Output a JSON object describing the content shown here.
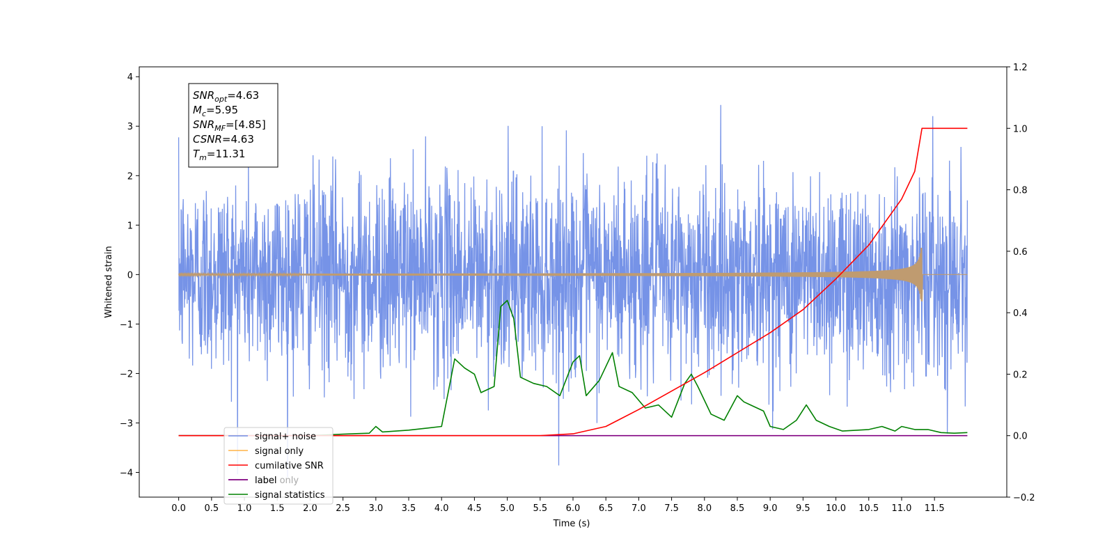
{
  "chart_data": {
    "type": "line",
    "xlabel": "Time (s)",
    "ylabel": "Whitened strain",
    "xlim": [
      -0.6,
      12.6
    ],
    "ylim": [
      -4.5,
      4.2
    ],
    "y2lim": [
      -0.2,
      1.2
    ],
    "x_ticks": [
      "0.0",
      "0.5",
      "1.0",
      "1.5",
      "2.0",
      "2.5",
      "3.0",
      "3.5",
      "4.0",
      "4.5",
      "5.0",
      "5.5",
      "6.0",
      "6.5",
      "7.0",
      "7.5",
      "8.0",
      "8.5",
      "9.0",
      "9.5",
      "10.0",
      "10.5",
      "11.0",
      "11.5"
    ],
    "y_ticks": [
      "4",
      "3",
      "2",
      "1",
      "0",
      "−1",
      "−2",
      "−3",
      "−4"
    ],
    "y2_ticks": [
      "1.2",
      "1.0",
      "0.8",
      "0.6",
      "0.4",
      "0.2",
      "0.0",
      "−0.2"
    ],
    "legend": {
      "placement": "lower-left",
      "entries": [
        {
          "name": "signal+ noise",
          "color": "#6f8de6"
        },
        {
          "name": "signal only",
          "color": "#ffb347"
        },
        {
          "name": "cumilative SNR",
          "color": "#ff0000"
        },
        {
          "name": "label only",
          "color": "#800080"
        },
        {
          "name": "label",
          "color": "#800080"
        },
        {
          "name": "signal statistics",
          "color": "#008000"
        }
      ]
    },
    "stats_box": {
      "lines": [
        {
          "sym": "SNR",
          "sub": "opt",
          "val": "=4.63"
        },
        {
          "sym": "M",
          "sub": "c",
          "val": "=5.95"
        },
        {
          "sym": "SNR",
          "sub": "MF",
          "val": "=[4.85]"
        },
        {
          "sym": "CSNR",
          "sub": "",
          "val": "=4.63"
        },
        {
          "sym": "T",
          "sub": "m",
          "val": "=11.31"
        }
      ]
    },
    "series": [
      {
        "name": "signal+ noise",
        "axis": "left",
        "color": "#6f8de6",
        "x_range": [
          0.0,
          12.0
        ],
        "sigma": 1.0,
        "mean": 0.0
      },
      {
        "name": "signal only",
        "axis": "left",
        "color": "#bf9b70",
        "chirp_end": 11.31,
        "x_range": [
          0.0,
          12.0
        ]
      },
      {
        "name": "cumilative SNR",
        "axis": "right",
        "color": "#ff0000",
        "x": [
          0.0,
          5.0,
          5.5,
          6.0,
          6.5,
          7.0,
          7.5,
          8.0,
          8.5,
          9.0,
          9.5,
          10.0,
          10.5,
          11.0,
          11.2,
          11.31,
          12.0
        ],
        "y": [
          0.0,
          0.0,
          0.0,
          0.006,
          0.03,
          0.085,
          0.145,
          0.205,
          0.27,
          0.335,
          0.41,
          0.51,
          0.62,
          0.77,
          0.86,
          1.0,
          1.0
        ]
      },
      {
        "name": "label",
        "axis": "right",
        "color": "#800080",
        "x": [
          0.0,
          12.0
        ],
        "y": [
          0.0,
          0.0
        ]
      },
      {
        "name": "signal statistics",
        "axis": "right",
        "color": "#008000",
        "x": [
          0.0,
          2.0,
          2.5,
          2.9,
          3.0,
          3.1,
          3.5,
          3.8,
          4.0,
          4.2,
          4.35,
          4.5,
          4.6,
          4.8,
          4.9,
          5.0,
          5.1,
          5.2,
          5.4,
          5.6,
          5.8,
          6.0,
          6.1,
          6.2,
          6.4,
          6.6,
          6.7,
          6.9,
          7.1,
          7.3,
          7.5,
          7.7,
          7.8,
          7.9,
          8.1,
          8.3,
          8.5,
          8.6,
          8.7,
          8.9,
          9.0,
          9.2,
          9.4,
          9.55,
          9.7,
          9.9,
          10.1,
          10.5,
          10.7,
          10.9,
          11.0,
          11.2,
          11.4,
          11.6,
          11.8,
          12.0
        ],
        "y": [
          0.0,
          0.0,
          0.005,
          0.008,
          0.03,
          0.012,
          0.018,
          0.025,
          0.03,
          0.25,
          0.22,
          0.2,
          0.14,
          0.16,
          0.42,
          0.44,
          0.38,
          0.19,
          0.17,
          0.16,
          0.13,
          0.24,
          0.26,
          0.13,
          0.18,
          0.27,
          0.16,
          0.14,
          0.09,
          0.1,
          0.06,
          0.17,
          0.2,
          0.16,
          0.07,
          0.05,
          0.13,
          0.11,
          0.1,
          0.08,
          0.03,
          0.02,
          0.05,
          0.1,
          0.05,
          0.03,
          0.015,
          0.02,
          0.03,
          0.015,
          0.03,
          0.02,
          0.02,
          0.01,
          0.008,
          0.01
        ]
      }
    ]
  }
}
